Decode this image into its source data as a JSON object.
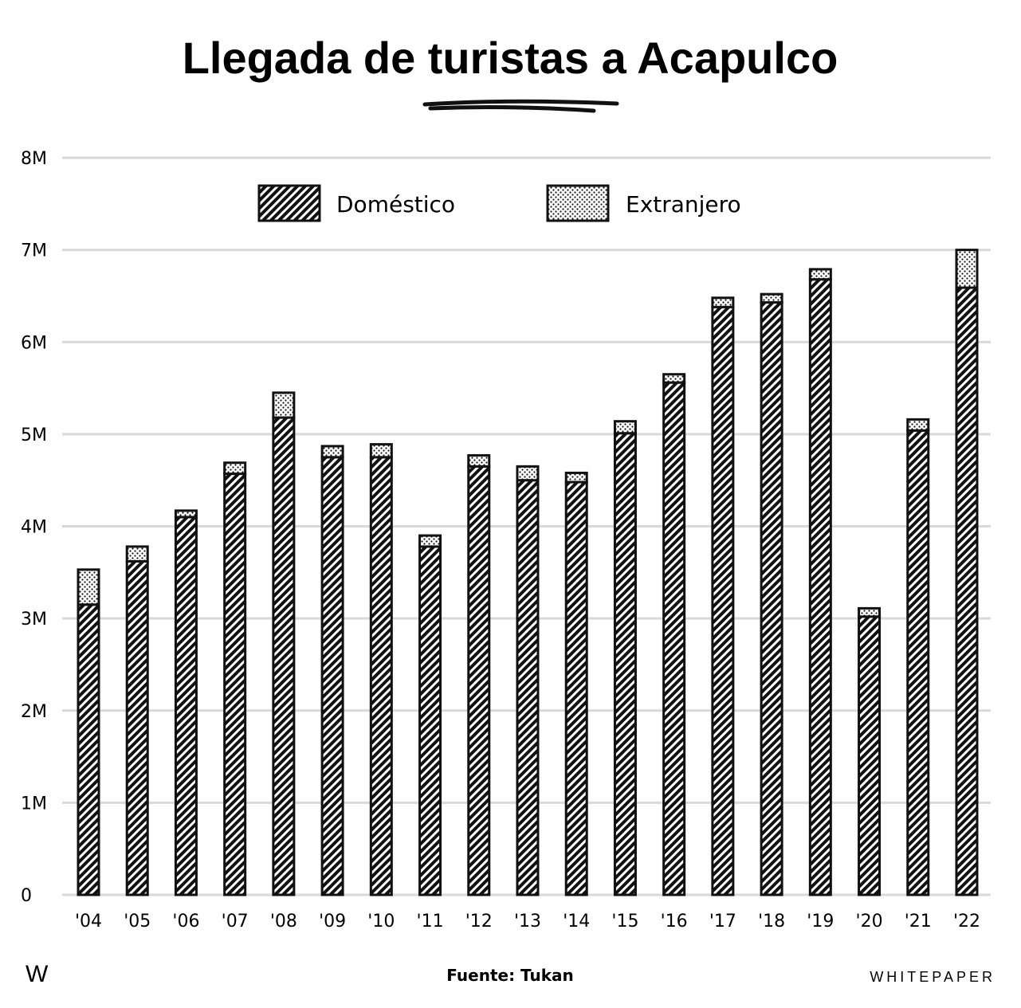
{
  "chart_data": {
    "type": "bar",
    "stacked": true,
    "title": "Llegada de turistas a Acapulco",
    "categories": [
      "'04",
      "'05",
      "'06",
      "'07",
      "'08",
      "'09",
      "'10",
      "'11",
      "'12",
      "'13",
      "'14",
      "'15",
      "'16",
      "'17",
      "'18",
      "'19",
      "'20",
      "'21",
      "'22"
    ],
    "series": [
      {
        "name": "Doméstico",
        "values": [
          3.15,
          3.62,
          4.1,
          4.57,
          5.18,
          4.75,
          4.75,
          3.78,
          4.65,
          4.5,
          4.48,
          5.01,
          5.56,
          6.38,
          6.43,
          6.68,
          3.02,
          5.04,
          6.59
        ]
      },
      {
        "name": "Extranjero",
        "values": [
          0.38,
          0.16,
          0.07,
          0.12,
          0.27,
          0.12,
          0.14,
          0.12,
          0.12,
          0.15,
          0.1,
          0.13,
          0.09,
          0.1,
          0.09,
          0.11,
          0.09,
          0.12,
          0.41
        ]
      }
    ],
    "yunit": "M",
    "ylim": [
      0,
      8
    ],
    "yticks": [
      "0",
      "1M",
      "2M",
      "3M",
      "4M",
      "5M",
      "6M",
      "7M",
      "8M"
    ],
    "grid": true,
    "legend": "top-center",
    "source": "Fuente: Tukan"
  },
  "branding": {
    "logo": "W",
    "name": "WHITEPAPER"
  },
  "colors": {
    "ink": "#111111",
    "grid": "#d9d9d9",
    "background": "#ffffff"
  }
}
